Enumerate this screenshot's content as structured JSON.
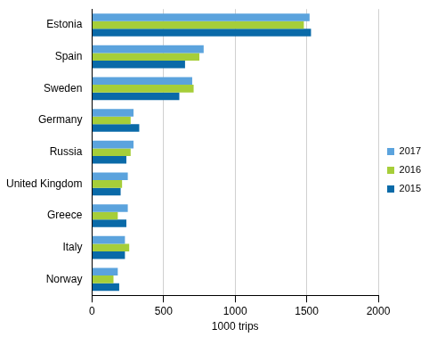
{
  "chart_data": {
    "type": "bar",
    "orientation": "horizontal",
    "x_label": "1000 trips",
    "categories": [
      "Estonia",
      "Spain",
      "Sweden",
      "Germany",
      "Russia",
      "United Kingdom",
      "Greece",
      "Italy",
      "Norway"
    ],
    "series": [
      {
        "name": "2017",
        "color": "#5ba3dd",
        "values": [
          1520,
          780,
          700,
          290,
          290,
          250,
          250,
          230,
          180
        ]
      },
      {
        "name": "2016",
        "color": "#a6ce39",
        "values": [
          1480,
          750,
          710,
          270,
          270,
          210,
          180,
          260,
          150
        ]
      },
      {
        "name": "2015",
        "color": "#0a6aa8",
        "values": [
          1530,
          650,
          610,
          330,
          240,
          200,
          240,
          230,
          190
        ]
      }
    ],
    "xlim": [
      0,
      2000
    ],
    "xticks": [
      0,
      500,
      1000,
      1500,
      2000
    ],
    "grid": true,
    "legend": "right"
  }
}
